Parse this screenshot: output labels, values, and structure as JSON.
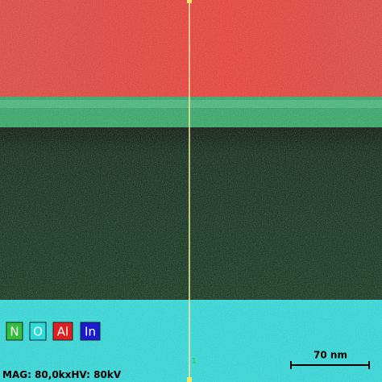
{
  "legend": [
    "N",
    "O",
    "Al",
    "In"
  ],
  "scale_bar": {
    "label": "70 nm"
  },
  "marker": "1",
  "info": {
    "mag": "MAG: 80,0kx",
    "hv": "HV: 80kV"
  }
}
